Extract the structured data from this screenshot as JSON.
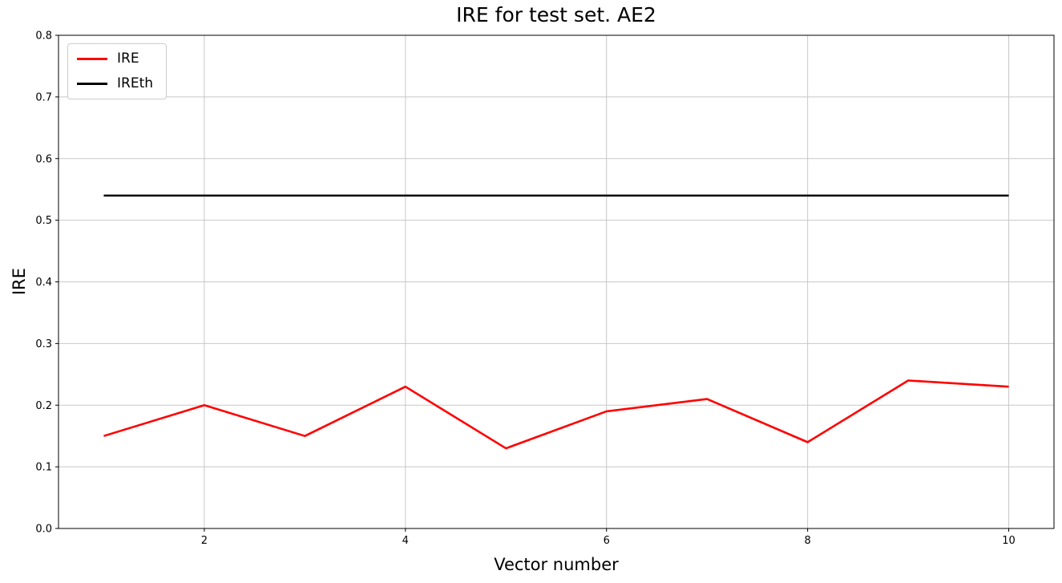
{
  "chart_data": {
    "type": "line",
    "title": "IRE for test set. AE2",
    "xlabel": "Vector number",
    "ylabel": "IRE",
    "x": [
      1,
      2,
      3,
      4,
      5,
      6,
      7,
      8,
      9,
      10
    ],
    "series": [
      {
        "name": "IRE",
        "color": "#ff0000",
        "values": [
          0.15,
          0.2,
          0.15,
          0.23,
          0.13,
          0.19,
          0.21,
          0.14,
          0.24,
          0.23
        ]
      },
      {
        "name": "IREth",
        "color": "#000000",
        "values": [
          0.54,
          0.54,
          0.54,
          0.54,
          0.54,
          0.54,
          0.54,
          0.54,
          0.54,
          0.54
        ]
      }
    ],
    "xlim": [
      0.55,
      10.45
    ],
    "ylim": [
      0.0,
      0.8
    ],
    "xticks": [
      2,
      4,
      6,
      8,
      10
    ],
    "xtick_labels": [
      "2",
      "4",
      "6",
      "8",
      "10"
    ],
    "yticks": [
      0.0,
      0.1,
      0.2,
      0.3,
      0.4,
      0.5,
      0.6,
      0.7,
      0.8
    ],
    "ytick_labels": [
      "0.0",
      "0.1",
      "0.2",
      "0.3",
      "0.4",
      "0.5",
      "0.6",
      "0.7",
      "0.8"
    ],
    "grid": true,
    "grid_color": "#c8c8c8",
    "spine_color": "#000000",
    "legend_position": "upper left",
    "legend": [
      "IRE",
      "IREth"
    ]
  }
}
